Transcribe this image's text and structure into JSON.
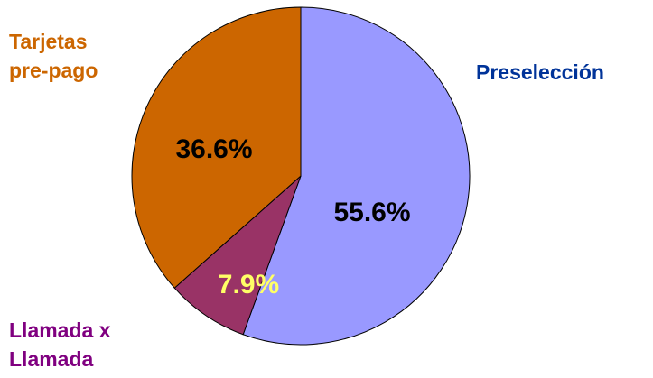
{
  "chart_data": {
    "type": "pie",
    "categories": [
      "Preselección",
      "Llamada x Llamada",
      "Tarjetas pre-pago"
    ],
    "values": [
      55.6,
      7.9,
      36.6
    ],
    "value_labels": [
      "55.6%",
      "7.9%",
      "36.6%"
    ],
    "colors": [
      "#9999ff",
      "#993366",
      "#cc6600"
    ],
    "label_colors": [
      "#003399",
      "#800080",
      "#cc6600"
    ],
    "value_label_colors": [
      "#000000",
      "#ffff66",
      "#000000"
    ]
  }
}
